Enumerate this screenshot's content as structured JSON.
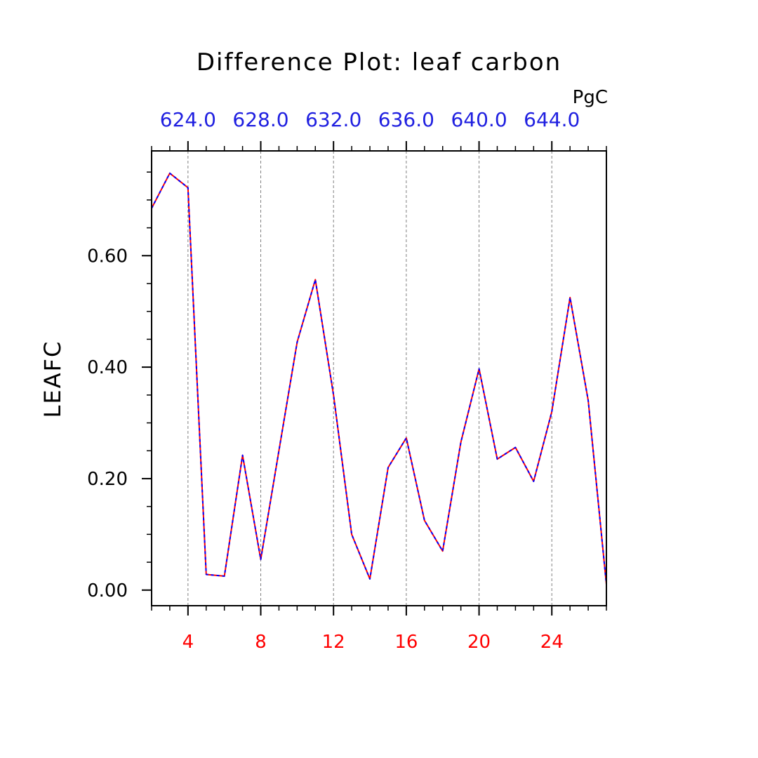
{
  "chart_data": {
    "type": "line",
    "title": "Difference Plot: leaf carbon",
    "ylabel": "LEAFC",
    "top_axis_unit": "PgC",
    "x": [
      2,
      3,
      4,
      5,
      6,
      7,
      8,
      9,
      10,
      11,
      12,
      13,
      14,
      15,
      16,
      17,
      18,
      19,
      20,
      21,
      22,
      23,
      24,
      25,
      26,
      27
    ],
    "xlim": [
      2,
      27
    ],
    "xticks": [
      4,
      8,
      12,
      16,
      20,
      24
    ],
    "xtick_labels": [
      "4",
      "8",
      "12",
      "16",
      "20",
      "24"
    ],
    "ylim": [
      -0.028,
      0.788
    ],
    "yticks": [
      0,
      0.2,
      0.4,
      0.6
    ],
    "ytick_labels": [
      "0.00",
      "0.20",
      "0.40",
      "0.60"
    ],
    "top_tick_labels": [
      "624.0",
      "628.0",
      "632.0",
      "636.0",
      "640.0",
      "644.0"
    ],
    "series": [
      {
        "color": "#ff0000",
        "style": "solid",
        "values": [
          0.685,
          0.748,
          0.722,
          0.028,
          0.025,
          0.242,
          0.055,
          0.25,
          0.445,
          0.557,
          0.35,
          0.1,
          0.02,
          0.22,
          0.273,
          0.125,
          0.07,
          0.265,
          0.397,
          0.235,
          0.256,
          0.195,
          0.32,
          0.525,
          0.34,
          0.01
        ]
      },
      {
        "color": "#0000ff",
        "style": "dashed",
        "values": [
          0.685,
          0.748,
          0.722,
          0.028,
          0.025,
          0.242,
          0.055,
          0.25,
          0.445,
          0.557,
          0.35,
          0.1,
          0.02,
          0.22,
          0.273,
          0.125,
          0.07,
          0.265,
          0.397,
          0.235,
          0.256,
          0.195,
          0.32,
          0.525,
          0.34,
          0.01
        ]
      }
    ],
    "grid": "vertical-dashed"
  }
}
